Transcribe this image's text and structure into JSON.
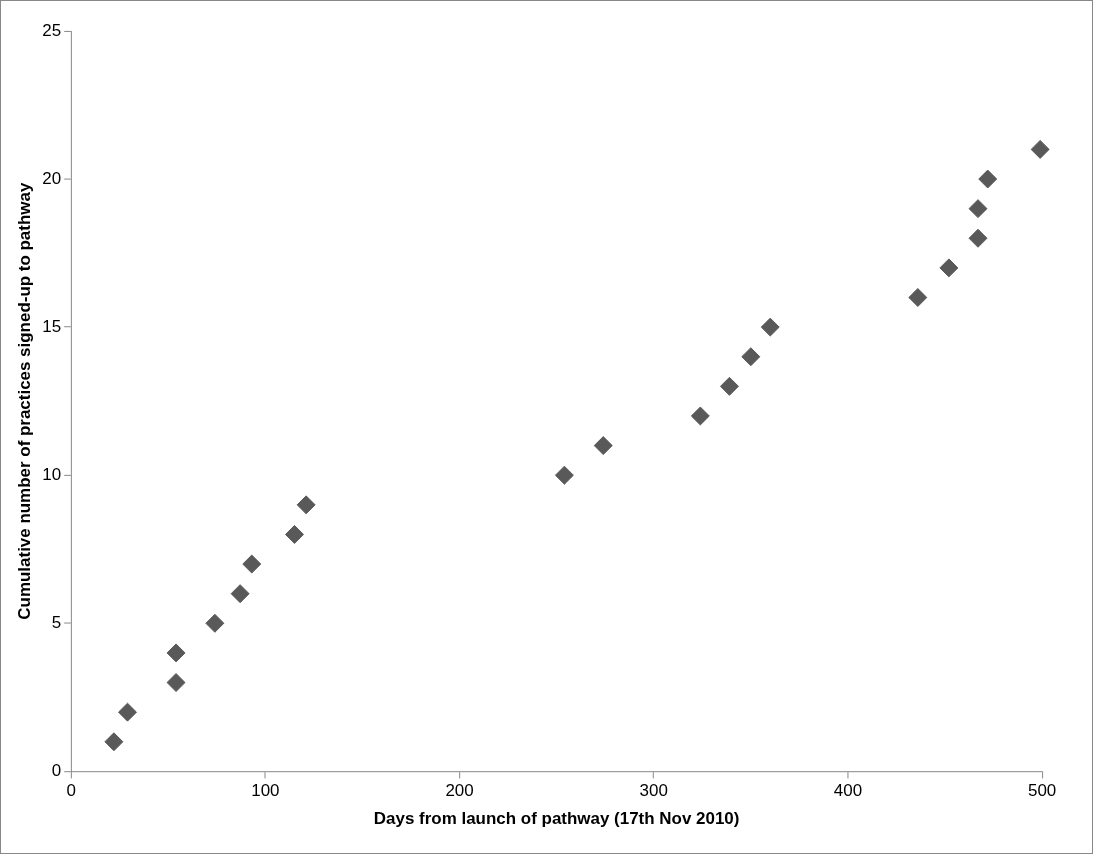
{
  "chart_data": {
    "type": "scatter",
    "xlabel": "Days from launch of pathway (17th Nov 2010)",
    "ylabel": "Cumulative number of practices signed-up to pathway",
    "xlim": [
      0,
      500
    ],
    "xticks": [
      0,
      100,
      200,
      300,
      400,
      500
    ],
    "ylim": [
      0,
      25
    ],
    "yticks": [
      0,
      5,
      10,
      15,
      20,
      25
    ],
    "grid": false,
    "legend": false,
    "marker": "diamond",
    "series": [
      {
        "color": "#595959",
        "x": [
          22,
          29,
          54,
          54,
          74,
          87,
          93,
          115,
          121,
          254,
          274,
          324,
          339,
          350,
          360,
          436,
          452,
          467,
          467,
          472,
          499
        ],
        "values": [
          1,
          2,
          3,
          4,
          5,
          6,
          7,
          8,
          9,
          10,
          11,
          12,
          13,
          14,
          15,
          16,
          17,
          18,
          19,
          20,
          21
        ]
      }
    ]
  }
}
